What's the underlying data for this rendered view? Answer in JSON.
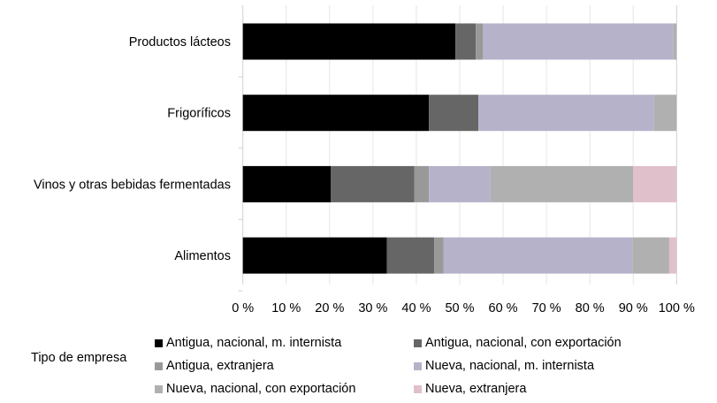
{
  "chart_data": {
    "type": "bar",
    "orientation": "horizontal",
    "stacked": "percent",
    "categories": [
      "Productos lácteos",
      "Frigoríficos",
      "Vinos y otras bebidas fermentadas",
      "Alimentos"
    ],
    "series": [
      {
        "name": "Antigua, nacional, m. internista",
        "color": "#000000",
        "values": [
          49.0,
          42.9,
          20.3,
          33.2
        ]
      },
      {
        "name": "Antigua, nacional, con exportación",
        "color": "#666666",
        "values": [
          4.7,
          11.4,
          19.2,
          10.9
        ]
      },
      {
        "name": "Antigua, extranjera",
        "color": "#999999",
        "values": [
          1.6,
          0,
          3.4,
          2.2
        ]
      },
      {
        "name": "Nueva, nacional, m. internista",
        "color": "#b6b2ca",
        "values": [
          44.0,
          40.5,
          14.2,
          43.5
        ]
      },
      {
        "name": "Nueva, nacional, con exportación",
        "color": "#b0b0b0",
        "values": [
          0.7,
          5.2,
          32.9,
          8.5
        ]
      },
      {
        "name": "Nueva, extranjera",
        "color": "#e0c0ca",
        "values": [
          0,
          0,
          10.0,
          1.7
        ]
      }
    ],
    "xlim": [
      0,
      100
    ],
    "xticks": [
      "0 %",
      "10 %",
      "20 %",
      "30 %",
      "40 %",
      "50 %",
      "60 %",
      "70 %",
      "80 %",
      "90 %",
      "100 %"
    ],
    "grid": true,
    "legend_title": "Tipo de empresa",
    "legend_position": "bottom"
  }
}
